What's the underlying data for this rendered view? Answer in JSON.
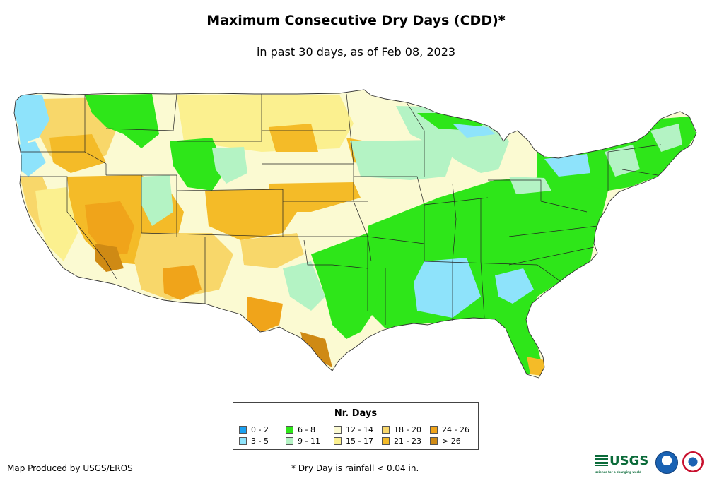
{
  "title": "Maximum Consecutive Dry Days (CDD)*",
  "subtitle": "in past 30 days, as of Feb 08, 2023",
  "legend": {
    "title": "Nr. Days",
    "items": [
      {
        "label": "0 - 2",
        "color": "#1aa0f0"
      },
      {
        "label": "3 - 5",
        "color": "#8ee3fb"
      },
      {
        "label": "6 - 8",
        "color": "#2ee619"
      },
      {
        "label": "9 - 11",
        "color": "#b4f3c4"
      },
      {
        "label": "12 - 14",
        "color": "#fbfad2"
      },
      {
        "label": "15 - 17",
        "color": "#fbf08f"
      },
      {
        "label": "18 - 20",
        "color": "#f8d76a"
      },
      {
        "label": "21 - 23",
        "color": "#f4bb28"
      },
      {
        "label": "24 - 26",
        "color": "#f0a41a"
      },
      {
        "label": "> 26",
        "color": "#cf8a14"
      }
    ]
  },
  "credit": "Map Produced by USGS/EROS",
  "footnote": "* Dry Day is rainfall < 0.04 in.",
  "logos": {
    "usgs_text": "USGS",
    "usgs_tagline": "science for a changing world"
  }
}
